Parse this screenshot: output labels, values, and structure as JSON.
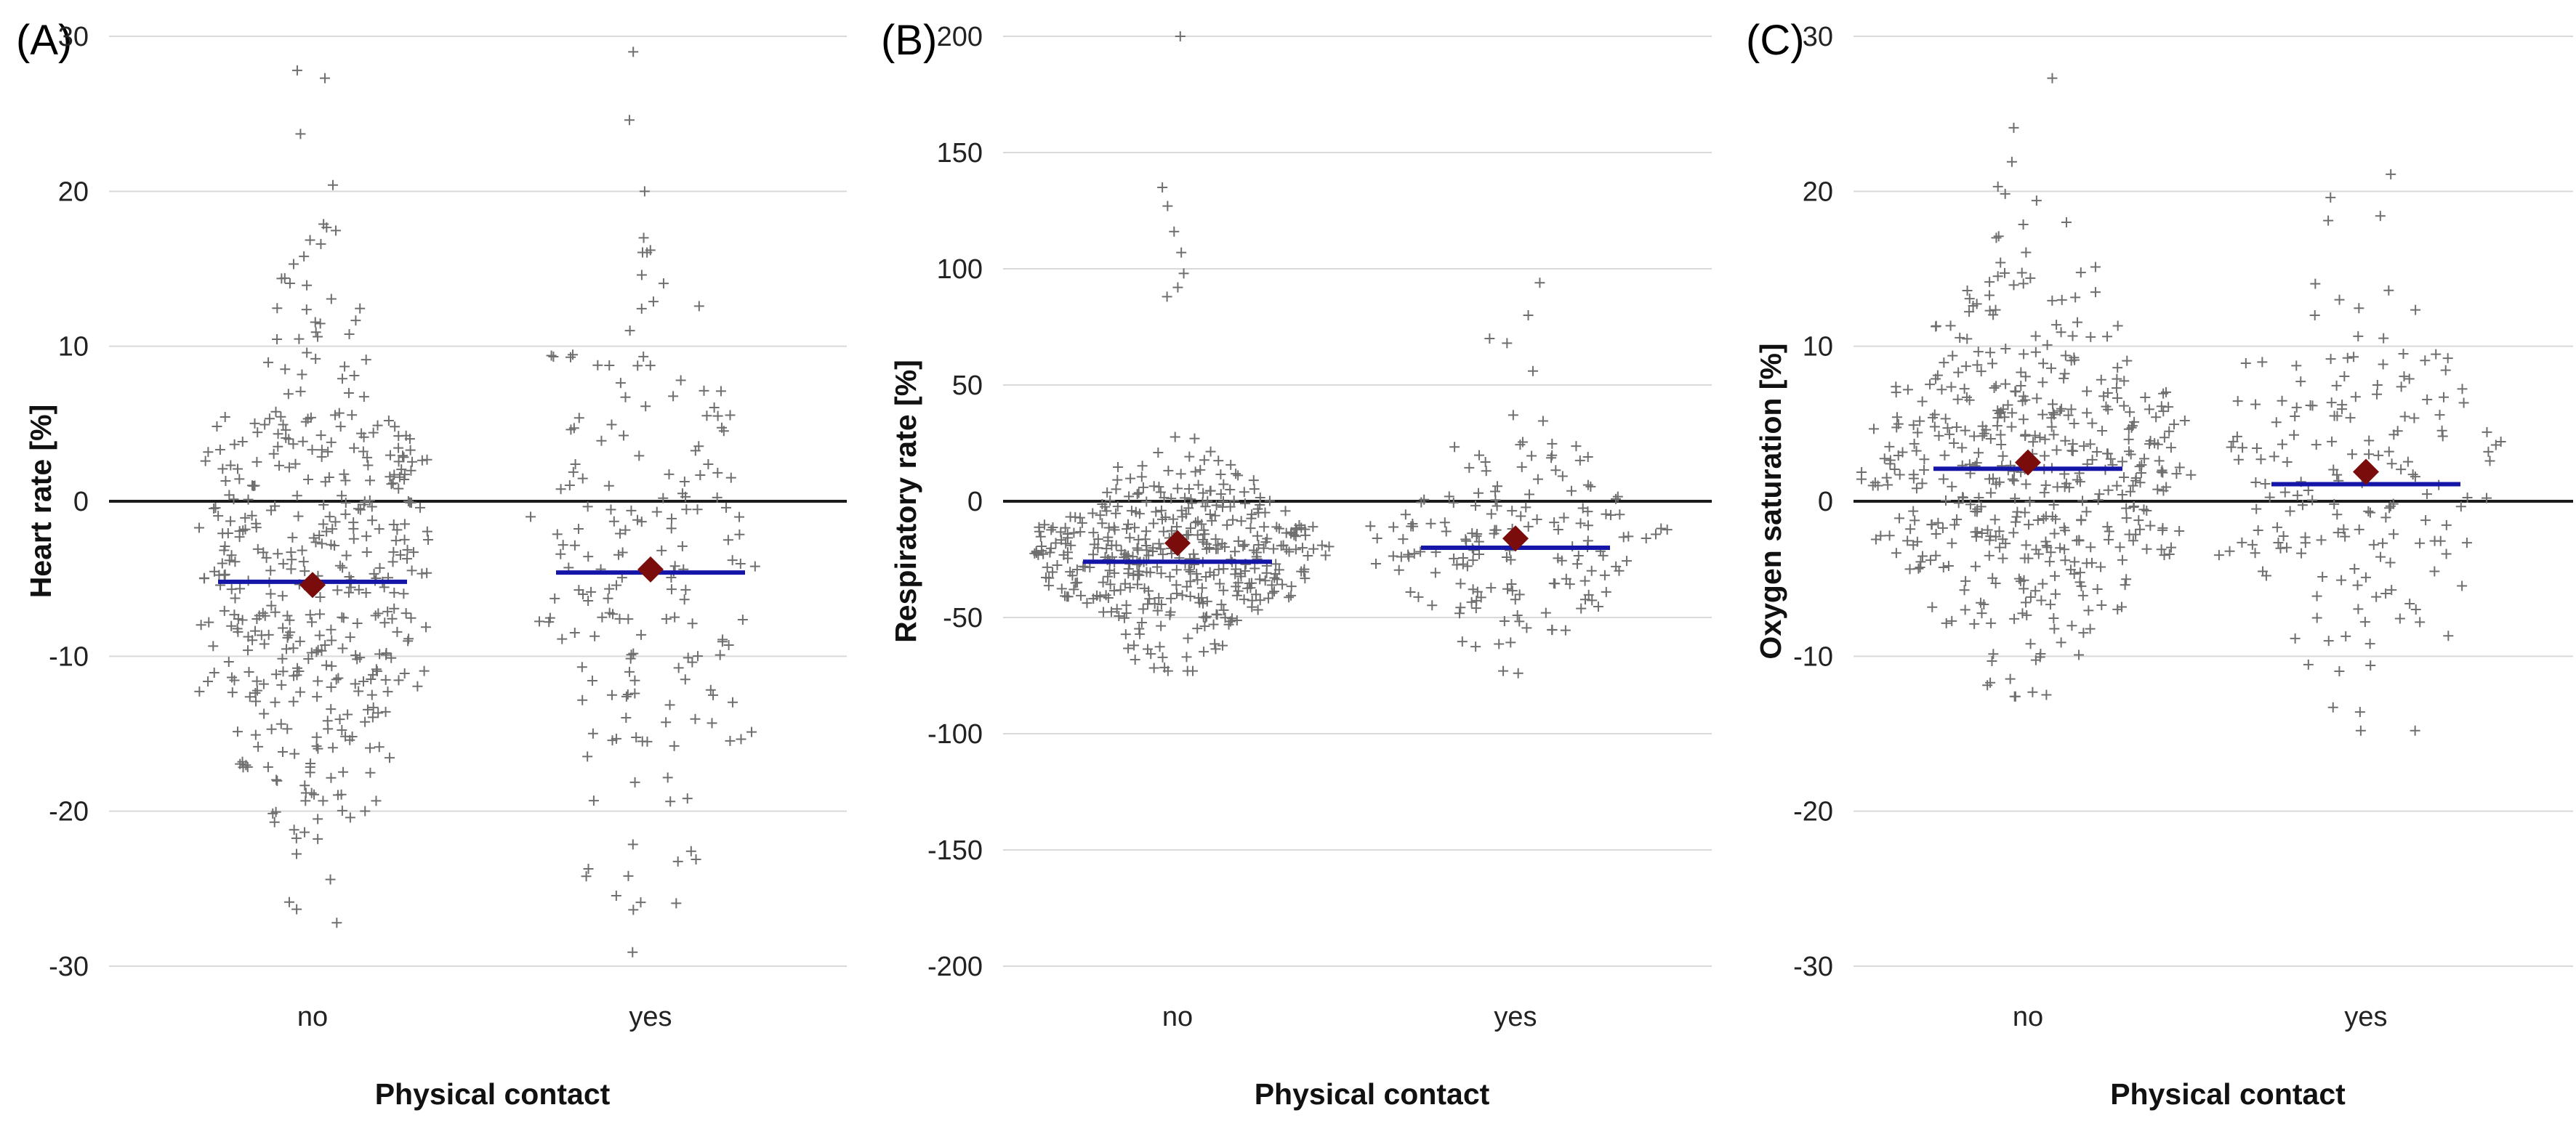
{
  "chart_data": [
    {
      "type": "scatter",
      "panel_label": "(A)",
      "xlabel": "Physical contact",
      "ylabel": "Heart rate [%]",
      "categories": [
        "no",
        "yes"
      ],
      "ylim": [
        -30,
        30
      ],
      "yticks": [
        -30,
        -20,
        -10,
        0,
        10,
        20,
        30
      ],
      "grid": true,
      "summary": [
        {
          "category": "no",
          "median": -5.2,
          "mean": -5.4,
          "n_points": 430,
          "min": -27.2,
          "max": 27.8,
          "outliers": [
            27.8,
            27.3,
            23.7,
            20.4,
            16.6,
            15.8
          ]
        },
        {
          "category": "yes",
          "median": -4.6,
          "mean": -4.4,
          "n_points": 175,
          "min": -29.1,
          "max": 29.0,
          "outliers": [
            29.0,
            20.0,
            17.0,
            16.2,
            14.6,
            -24.2,
            -29.1
          ]
        }
      ]
    },
    {
      "type": "scatter",
      "panel_label": "(B)",
      "xlabel": "Physical contact",
      "ylabel": "Respiratory rate [%]",
      "categories": [
        "no",
        "yes"
      ],
      "ylim": [
        -200,
        200
      ],
      "yticks": [
        -200,
        -150,
        -100,
        -50,
        0,
        50,
        100,
        150,
        200
      ],
      "grid": true,
      "summary": [
        {
          "category": "no",
          "median": -26,
          "mean": -18,
          "n_points": 430,
          "min": -73,
          "max": 200,
          "outliers": [
            200,
            135,
            127,
            116,
            107,
            98,
            92,
            88
          ]
        },
        {
          "category": "yes",
          "median": -20,
          "mean": -16,
          "n_points": 160,
          "min": -74,
          "max": 94,
          "outliers": [
            94,
            80,
            70,
            68,
            56
          ]
        }
      ]
    },
    {
      "type": "scatter",
      "panel_label": "(C)",
      "xlabel": "Physical contact",
      "ylabel": "Oxygen saturation [%]",
      "categories": [
        "no",
        "yes"
      ],
      "ylim": [
        -30,
        30
      ],
      "yticks": [
        -30,
        -20,
        -10,
        0,
        10,
        20,
        30
      ],
      "grid": true,
      "summary": [
        {
          "category": "no",
          "median": 2.1,
          "mean": 2.5,
          "n_points": 470,
          "min": -12.6,
          "max": 27.3,
          "outliers": [
            27.3,
            24.1,
            21.9,
            20.3,
            18.0,
            17.0
          ]
        },
        {
          "category": "yes",
          "median": 1.1,
          "mean": 1.9,
          "n_points": 170,
          "min": -14.8,
          "max": 21.1,
          "outliers": [
            21.1,
            19.6,
            13.0,
            12.0,
            -13.3,
            -13.6,
            -14.8
          ]
        }
      ]
    }
  ]
}
